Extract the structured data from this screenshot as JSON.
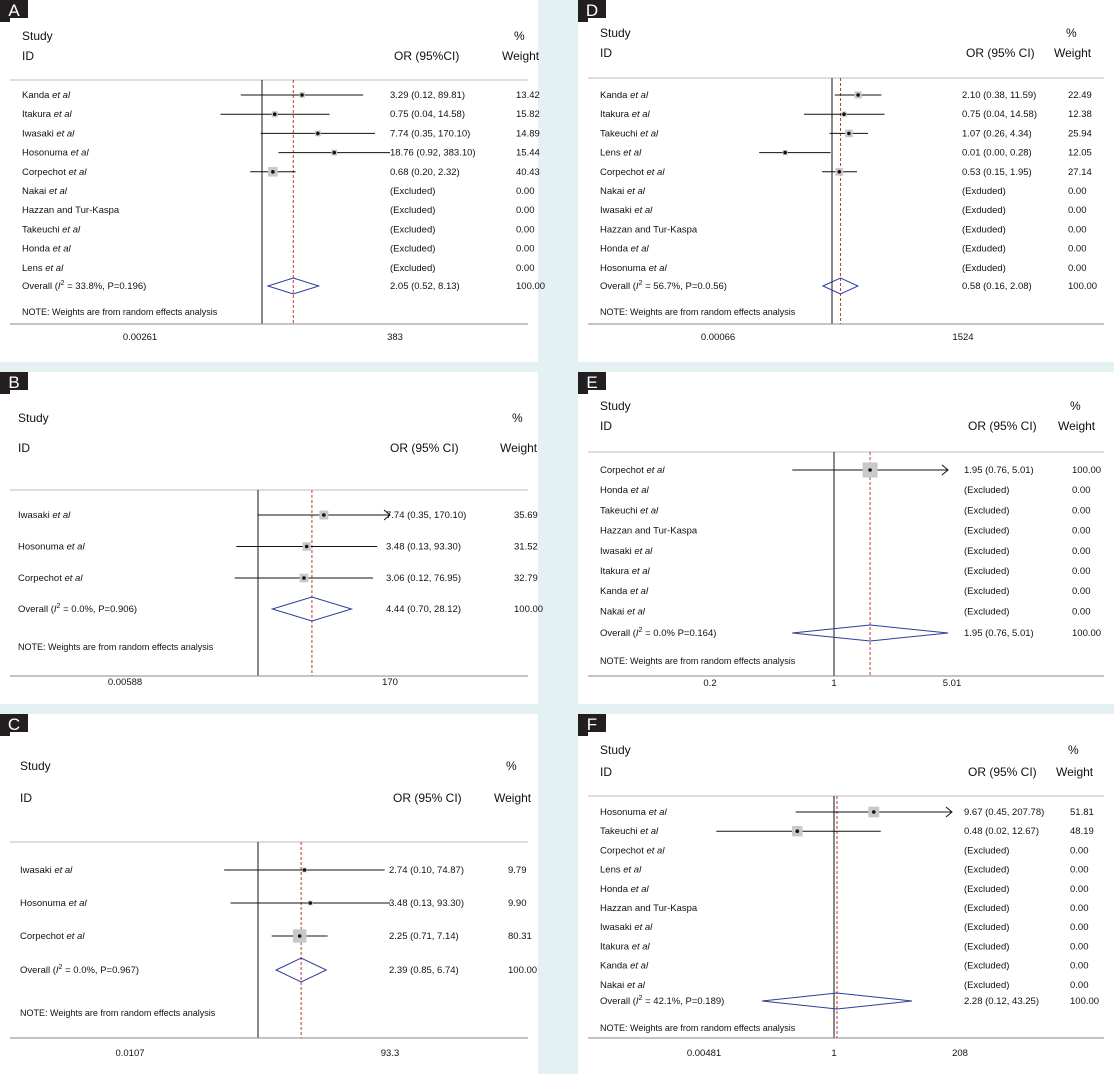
{
  "panels": [
    {
      "id": "A",
      "header": {
        "study": "Study",
        "id": "ID",
        "or": "OR (95%CI)",
        "pct": "%",
        "weight": "Weight"
      },
      "note": "NOTE: Weights are from random effects analysis",
      "axis_ticks": [
        "0.00261",
        "383"
      ],
      "rows": [
        {
          "study": "Kanda",
          "etal": true,
          "or_text": "3.29 (0.12, 89.81)",
          "weight": "13.42",
          "or": 3.29,
          "lo": 0.12,
          "hi": 89.81
        },
        {
          "study": "Itakura",
          "etal": true,
          "or_text": "0.75 (0.04, 14.58)",
          "weight": "15.82",
          "or": 0.75,
          "lo": 0.04,
          "hi": 14.58
        },
        {
          "study": "Iwasaki",
          "etal": true,
          "or_text": "7.74 (0.35, 170.10)",
          "weight": "14.89",
          "or": 7.74,
          "lo": 0.35,
          "hi": 170.1
        },
        {
          "study": "Hosonuma",
          "etal": true,
          "or_text": "18.76 (0.92, 383.10)",
          "weight": "15.44",
          "or": 18.76,
          "lo": 0.92,
          "hi": 383.1
        },
        {
          "study": "Corpechot",
          "etal": true,
          "or_text": "0.68 (0.20, 2.32)",
          "weight": "40.43",
          "or": 0.68,
          "lo": 0.2,
          "hi": 2.32
        },
        {
          "study": "Nakai",
          "etal": true,
          "or_text": "(Excluded)",
          "weight": "0.00"
        },
        {
          "study": "Hazzan and Tur-Kaspa",
          "etal": false,
          "or_text": "(Excluded)",
          "weight": "0.00"
        },
        {
          "study": "Takeuchi",
          "etal": true,
          "or_text": "(Excluded)",
          "weight": "0.00"
        },
        {
          "study": "Honda",
          "etal": true,
          "or_text": "(Excluded)",
          "weight": "0.00"
        },
        {
          "study": "Lens",
          "etal": true,
          "or_text": "(Excluded)",
          "weight": "0.00"
        }
      ],
      "overall": {
        "label": "Overall (",
        "stat": " = 33.8%, P=0.196)",
        "or_text": "2.05 (0.52, 8.13)",
        "weight": "100.00",
        "or": 2.05,
        "lo": 0.52,
        "hi": 8.13
      }
    },
    {
      "id": "B",
      "header": {
        "study": "Study",
        "id": "ID",
        "or": "OR (95% CI)",
        "pct": "%",
        "weight": "Weight"
      },
      "note": "NOTE: Weights are from random effects analysis",
      "axis_ticks": [
        "0.00588",
        "170"
      ],
      "rows": [
        {
          "study": "Iwasaki",
          "etal": true,
          "or_text": "7.74 (0.35, 170.10)",
          "weight": "35.69",
          "or": 7.74,
          "lo": 0.35,
          "hi": 170.1,
          "arrow": true
        },
        {
          "study": "Hosonuma",
          "etal": true,
          "or_text": "3.48 (0.13, 93.30)",
          "weight": "31.52",
          "or": 3.48,
          "lo": 0.13,
          "hi": 93.3
        },
        {
          "study": "Corpechot",
          "etal": true,
          "or_text": "3.06 (0.12, 76.95)",
          "weight": "32.79",
          "or": 3.06,
          "lo": 0.12,
          "hi": 76.95
        }
      ],
      "overall": {
        "label": "Overall (",
        "stat": " = 0.0%, P=0.906)",
        "or_text": "4.44 (0.70, 28.12)",
        "weight": "100.00",
        "or": 4.44,
        "lo": 0.7,
        "hi": 28.12
      }
    },
    {
      "id": "C",
      "header": {
        "study": "Study",
        "id": "ID",
        "or": "OR (95% CI)",
        "pct": "%",
        "weight": "Weight"
      },
      "note": "NOTE: Weights are from random effects analysis",
      "axis_ticks": [
        "0.0107",
        "93.3"
      ],
      "rows": [
        {
          "study": "Iwasaki",
          "etal": true,
          "or_text": "2.74 (0.10, 74.87)",
          "weight": "9.79",
          "or": 2.74,
          "lo": 0.1,
          "hi": 74.87
        },
        {
          "study": "Hosonuma",
          "etal": true,
          "or_text": "3.48 (0.13, 93.30)",
          "weight": "9.90",
          "or": 3.48,
          "lo": 0.13,
          "hi": 93.3
        },
        {
          "study": "Corpechot",
          "etal": true,
          "or_text": "2.25 (0.71, 7.14)",
          "weight": "80.31",
          "or": 2.25,
          "lo": 0.71,
          "hi": 7.14
        }
      ],
      "overall": {
        "label": "Overall (",
        "stat": " = 0.0%, P=0.967)",
        "or_text": "2.39 (0.85, 6.74)",
        "weight": "100.00",
        "or": 2.39,
        "lo": 0.85,
        "hi": 6.74
      }
    },
    {
      "id": "D",
      "header": {
        "study": "Study",
        "id": "ID",
        "or": "OR (95% CI)",
        "pct": "%",
        "weight": "Weight"
      },
      "note": "NOTE: Weights are from random effects analysis",
      "axis_ticks": [
        "0.00066",
        "1524"
      ],
      "rows": [
        {
          "study": "Kanda",
          "etal": true,
          "or_text": "2.10 (0.38, 11.59)",
          "weight": "22.49",
          "or": 2.1,
          "lo": 0.38,
          "hi": 11.59
        },
        {
          "study": "Itakura",
          "etal": true,
          "or_text": "0.75 (0.04, 14.58)",
          "weight": "12.38",
          "or": 0.75,
          "lo": 0.04,
          "hi": 14.58
        },
        {
          "study": "Takeuchi",
          "etal": true,
          "or_text": "1.07 (0.26, 4.34)",
          "weight": "25.94",
          "or": 1.07,
          "lo": 0.26,
          "hi": 4.34
        },
        {
          "study": "Lens",
          "etal": true,
          "or_text": "0.01 (0.00, 0.28)",
          "weight": "12.05",
          "or": 0.01,
          "lo": 0.0015,
          "hi": 0.28
        },
        {
          "study": "Corpechot",
          "etal": true,
          "or_text": "0.53 (0.15, 1.95)",
          "weight": "27.14",
          "or": 0.53,
          "lo": 0.15,
          "hi": 1.95
        },
        {
          "study": "Nakai",
          "etal": true,
          "or_text": "(Exduded)",
          "weight": "0.00"
        },
        {
          "study": "Iwasaki",
          "etal": true,
          "or_text": "(Exduded)",
          "weight": "0.00"
        },
        {
          "study": "Hazzan and Tur-Kaspa",
          "etal": false,
          "or_text": "(Exduded)",
          "weight": "0.00"
        },
        {
          "study": "Honda",
          "etal": true,
          "or_text": "(Exduded)",
          "weight": "0.00"
        },
        {
          "study": "Hosonuma",
          "etal": true,
          "or_text": "(Exduded)",
          "weight": "0.00"
        }
      ],
      "overall": {
        "label": "Overall (",
        "stat": " = 56.7%, P=0.0.56)",
        "or_text": "0.58 (0.16, 2.08)",
        "weight": "100.00",
        "or": 0.58,
        "lo": 0.16,
        "hi": 2.08
      }
    },
    {
      "id": "E",
      "header": {
        "study": "Study",
        "id": "ID",
        "or": "OR (95% CI)",
        "pct": "%",
        "weight": "Weight"
      },
      "note": "NOTE: Weights are from random effects analysis",
      "axis_ticks": [
        "0.2",
        "1",
        "5.01"
      ],
      "rows": [
        {
          "study": "Corpechot",
          "etal": true,
          "or_text": "1.95 (0.76, 5.01)",
          "weight": "100.00",
          "or": 1.95,
          "lo": 0.76,
          "hi": 5.01,
          "arrow": true
        },
        {
          "study": "Honda",
          "etal": true,
          "or_text": "(Excluded)",
          "weight": "0.00"
        },
        {
          "study": "Takeuchi",
          "etal": true,
          "or_text": "(Excluded)",
          "weight": "0.00"
        },
        {
          "study": "Hazzan and Tur-Kaspa",
          "etal": false,
          "or_text": "(Excluded)",
          "weight": "0.00"
        },
        {
          "study": "Iwasaki",
          "etal": true,
          "or_text": "(Excluded)",
          "weight": "0.00"
        },
        {
          "study": "Itakura",
          "etal": true,
          "or_text": "(Excluded)",
          "weight": "0.00"
        },
        {
          "study": "Kanda",
          "etal": true,
          "or_text": "(Excluded)",
          "weight": "0.00"
        },
        {
          "study": "Nakai",
          "etal": true,
          "or_text": "(Excluded)",
          "weight": "0.00"
        }
      ],
      "overall": {
        "label": "Overall (",
        "stat": " = 0.0% P=0.164)",
        "or_text": "1.95 (0.76, 5.01)",
        "weight": "100.00",
        "or": 1.95,
        "lo": 0.76,
        "hi": 5.01
      }
    },
    {
      "id": "F",
      "header": {
        "study": "Study",
        "id": "ID",
        "or": "OR (95% CI)",
        "pct": "%",
        "weight": "Weight"
      },
      "note": "NOTE: Weights are from random effects analysis",
      "axis_ticks": [
        "0.00481",
        "1",
        "208"
      ],
      "rows": [
        {
          "study": "Hosonuma",
          "etal": true,
          "or_text": "9.67 (0.45, 207.78)",
          "weight": "51.81",
          "or": 9.67,
          "lo": 0.45,
          "hi": 207.78,
          "arrow": true
        },
        {
          "study": "Takeuchi",
          "etal": true,
          "or_text": "0.48 (0.02, 12.67)",
          "weight": "48.19",
          "or": 0.48,
          "lo": 0.02,
          "hi": 12.67
        },
        {
          "study": "Corpechot",
          "etal": true,
          "or_text": "(Excluded)",
          "weight": "0.00"
        },
        {
          "study": "Lens",
          "etal": true,
          "or_text": "(Excluded)",
          "weight": "0.00"
        },
        {
          "study": "Honda",
          "etal": true,
          "or_text": "(Excluded)",
          "weight": "0.00"
        },
        {
          "study": "Hazzan and Tur-Kaspa",
          "etal": false,
          "or_text": "(Excluded)",
          "weight": "0.00"
        },
        {
          "study": "Iwasaki",
          "etal": true,
          "or_text": "(Excluded)",
          "weight": "0.00"
        },
        {
          "study": "Itakura",
          "etal": true,
          "or_text": "(Excluded)",
          "weight": "0.00"
        },
        {
          "study": "Kanda",
          "etal": true,
          "or_text": "(Excluded)",
          "weight": "0.00"
        },
        {
          "study": "Nakai",
          "etal": true,
          "or_text": "(Excluded)",
          "weight": "0.00"
        }
      ],
      "overall": {
        "label": "Overall (",
        "stat": " = 42.1%, P=0.189)",
        "or_text": "2.28 (0.12, 43.25)",
        "weight": "100.00",
        "or": 2.28,
        "lo": 0.12,
        "hi": 43.25
      }
    }
  ],
  "chart_data": [
    {
      "type": "forest",
      "panel": "A",
      "xscale": "log",
      "xlim": [
        0.00261,
        383
      ],
      "null_line": 1,
      "series": [
        {
          "name": "OR",
          "labels": [
            "Kanda et al",
            "Itakura et al",
            "Iwasaki et al",
            "Hosonuma et al",
            "Corpechot et al"
          ],
          "values": [
            3.29,
            0.75,
            7.74,
            18.76,
            0.68
          ],
          "lower": [
            0.12,
            0.04,
            0.35,
            0.92,
            0.2
          ],
          "upper": [
            89.81,
            14.58,
            170.1,
            383.1,
            2.32
          ],
          "weights": [
            13.42,
            15.82,
            14.89,
            15.44,
            40.43
          ]
        }
      ],
      "overall": {
        "or": 2.05,
        "lo": 0.52,
        "hi": 8.13,
        "i2": "33.8%",
        "p": "0.196"
      }
    },
    {
      "type": "forest",
      "panel": "B",
      "xscale": "log",
      "xlim": [
        0.00588,
        170
      ],
      "null_line": 1,
      "series": [
        {
          "name": "OR",
          "labels": [
            "Iwasaki et al",
            "Hosonuma et al",
            "Corpechot et al"
          ],
          "values": [
            7.74,
            3.48,
            3.06
          ],
          "lower": [
            0.35,
            0.13,
            0.12
          ],
          "upper": [
            170.1,
            93.3,
            76.95
          ],
          "weights": [
            35.69,
            31.52,
            32.79
          ]
        }
      ],
      "overall": {
        "or": 4.44,
        "lo": 0.7,
        "hi": 28.12,
        "i2": "0.0%",
        "p": "0.906"
      }
    },
    {
      "type": "forest",
      "panel": "C",
      "xscale": "log",
      "xlim": [
        0.0107,
        93.3
      ],
      "null_line": 1,
      "series": [
        {
          "name": "OR",
          "labels": [
            "Iwasaki et al",
            "Hosonuma et al",
            "Corpechot et al"
          ],
          "values": [
            2.74,
            3.48,
            2.25
          ],
          "lower": [
            0.1,
            0.13,
            0.71
          ],
          "upper": [
            74.87,
            93.3,
            7.14
          ],
          "weights": [
            9.79,
            9.9,
            80.31
          ]
        }
      ],
      "overall": {
        "or": 2.39,
        "lo": 0.85,
        "hi": 6.74,
        "i2": "0.0%",
        "p": "0.967"
      }
    },
    {
      "type": "forest",
      "panel": "D",
      "xscale": "log",
      "xlim": [
        0.00066,
        1524
      ],
      "null_line": 1,
      "series": [
        {
          "name": "OR",
          "labels": [
            "Kanda et al",
            "Itakura et al",
            "Takeuchi et al",
            "Lens et al",
            "Corpechot et al"
          ],
          "values": [
            2.1,
            0.75,
            1.07,
            0.01,
            0.53
          ],
          "lower": [
            0.38,
            0.04,
            0.26,
            0.0,
            0.15
          ],
          "upper": [
            11.59,
            14.58,
            4.34,
            0.28,
            1.95
          ],
          "weights": [
            22.49,
            12.38,
            25.94,
            12.05,
            27.14
          ]
        }
      ],
      "overall": {
        "or": 0.58,
        "lo": 0.16,
        "hi": 2.08,
        "i2": "56.7%",
        "p": "0.056"
      }
    },
    {
      "type": "forest",
      "panel": "E",
      "xscale": "log",
      "xlim": [
        0.2,
        5.01
      ],
      "null_line": 1,
      "series": [
        {
          "name": "OR",
          "labels": [
            "Corpechot et al"
          ],
          "values": [
            1.95
          ],
          "lower": [
            0.76
          ],
          "upper": [
            5.01
          ],
          "weights": [
            100.0
          ]
        }
      ],
      "overall": {
        "or": 1.95,
        "lo": 0.76,
        "hi": 5.01,
        "i2": "0.0%",
        "p": "0.164"
      }
    },
    {
      "type": "forest",
      "panel": "F",
      "xscale": "log",
      "xlim": [
        0.00481,
        208
      ],
      "null_line": 1,
      "series": [
        {
          "name": "OR",
          "labels": [
            "Hosonuma et al",
            "Takeuchi et al"
          ],
          "values": [
            9.67,
            0.48
          ],
          "lower": [
            0.45,
            0.02
          ],
          "upper": [
            207.78,
            12.67
          ],
          "weights": [
            51.81,
            48.19
          ]
        }
      ],
      "overall": {
        "or": 2.28,
        "lo": 0.12,
        "hi": 43.25,
        "i2": "42.1%",
        "p": "0.189"
      }
    }
  ]
}
